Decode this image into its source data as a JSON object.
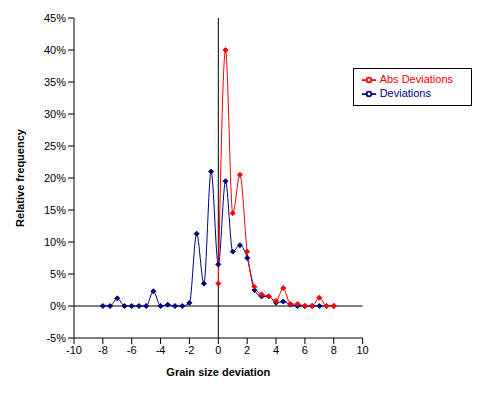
{
  "chart_data": {
    "type": "line",
    "x_label": "Grain size deviation",
    "y_label": "Relative frequency",
    "xlim": [
      -10,
      10
    ],
    "xticks": [
      -10,
      -8,
      -6,
      -4,
      -2,
      0,
      2,
      4,
      6,
      8,
      10
    ],
    "ylim": [
      -5,
      45
    ],
    "yticks": [
      {
        "value": -5,
        "label": "-5%"
      },
      {
        "value": 0,
        "label": "0%"
      },
      {
        "value": 5,
        "label": "5%"
      },
      {
        "value": 10,
        "label": "10%"
      },
      {
        "value": 15,
        "label": "15%"
      },
      {
        "value": 20,
        "label": "20%"
      },
      {
        "value": 25,
        "label": "25%"
      },
      {
        "value": 30,
        "label": "30%"
      },
      {
        "value": 35,
        "label": "35%"
      },
      {
        "value": 40,
        "label": "40%"
      },
      {
        "value": 45,
        "label": "45%"
      }
    ],
    "grid": false,
    "legend": "top-right",
    "series": [
      {
        "name": "Deviations",
        "color": "#000080",
        "marker": "diamond",
        "line_style": "smooth",
        "x": [
          -8,
          -7.5,
          -7,
          -6.5,
          -6,
          -5.5,
          -5,
          -4.5,
          -4,
          -3.5,
          -3,
          -2.5,
          -2,
          -1.5,
          -1,
          -0.5,
          0,
          0.5,
          1,
          1.5,
          2,
          2.5,
          3,
          3.5,
          4,
          4.5,
          5,
          5.5,
          6,
          6.5,
          7,
          7.5,
          8
        ],
        "values": [
          0,
          0,
          1.2,
          0,
          0,
          0,
          0,
          2.3,
          0,
          0.2,
          0,
          0,
          0.5,
          11.3,
          3.5,
          21,
          6.5,
          19.5,
          8.5,
          9.5,
          7.5,
          2.5,
          1.5,
          1.5,
          0.5,
          0.7,
          0.2,
          0,
          0,
          0,
          0,
          0,
          0
        ]
      },
      {
        "name": "Abs Deviations",
        "color": "#ff0000",
        "marker": "diamond",
        "line_style": "smooth",
        "x": [
          0,
          0.5,
          1,
          1.5,
          2,
          2.5,
          3,
          3.5,
          4,
          4.5,
          5,
          5.5,
          6,
          6.5,
          7,
          7.5,
          8
        ],
        "values": [
          3.5,
          40,
          14.5,
          20.5,
          8.5,
          3,
          1.8,
          1.5,
          0.8,
          2.8,
          0.3,
          0.3,
          0,
          0,
          1.3,
          0,
          0
        ]
      }
    ]
  }
}
